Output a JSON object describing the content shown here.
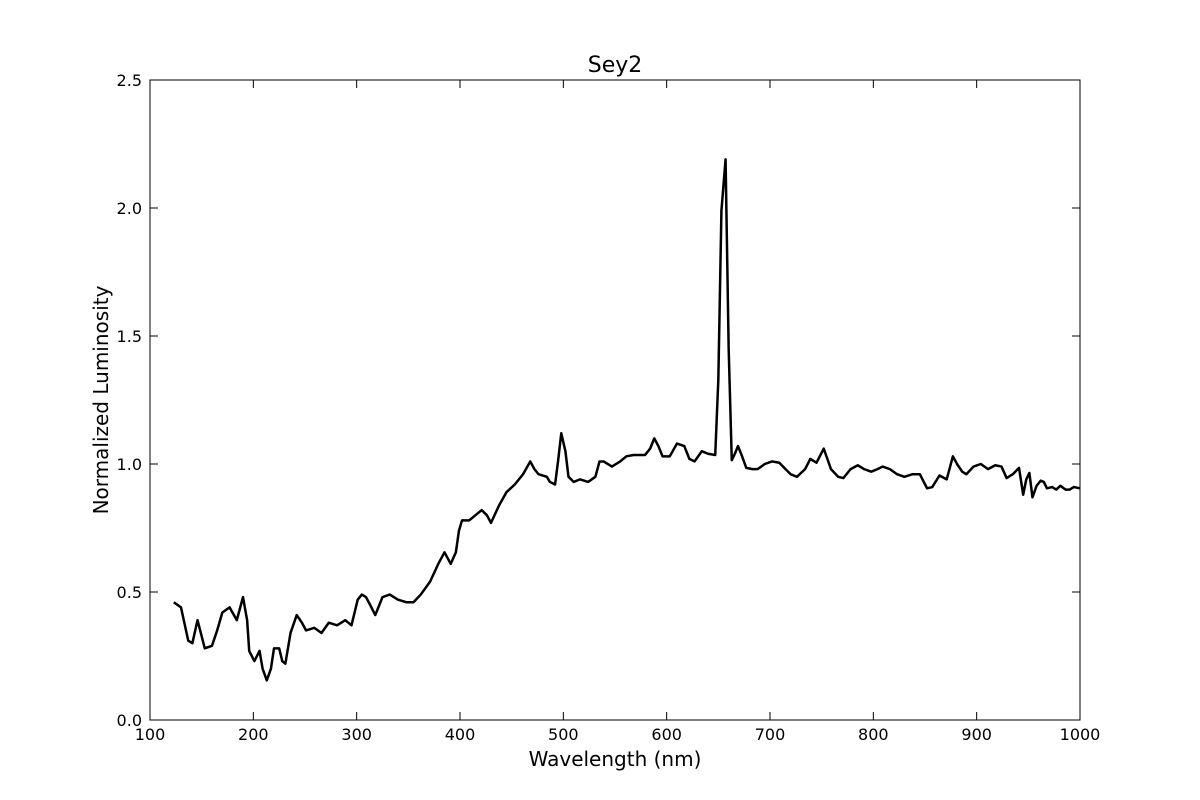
{
  "chart_data": {
    "type": "line",
    "title": "Sey2",
    "x_label": "Wavelength (nm)",
    "y_label": "Normalized Luminosity",
    "xlim": [
      100,
      1000
    ],
    "ylim": [
      0,
      2.5
    ],
    "xticks": [
      100,
      200,
      300,
      400,
      500,
      600,
      700,
      800,
      900,
      1000
    ],
    "yticks": [
      {
        "value": 0,
        "label": "0.0"
      },
      0.5,
      {
        "value": 1,
        "label": "1.0"
      },
      1.5,
      {
        "value": 2,
        "label": "2.0"
      },
      2.5
    ],
    "color": "#000000",
    "x": [
      123,
      130,
      137,
      141,
      146,
      153,
      160,
      165,
      170,
      177,
      184,
      190,
      194,
      196,
      201,
      206,
      209,
      213,
      217,
      220,
      225,
      228,
      231,
      236,
      242,
      247,
      251,
      259,
      266,
      273,
      281,
      289,
      295,
      301,
      305,
      309,
      313,
      318,
      325,
      332,
      340,
      348,
      355,
      362,
      371,
      379,
      385,
      391,
      396,
      399,
      402,
      409,
      415,
      421,
      426,
      430,
      438,
      445,
      453,
      461,
      468,
      472,
      476,
      484,
      487,
      492,
      495,
      498,
      502,
      505,
      510,
      516,
      524,
      531,
      535,
      539,
      547,
      555,
      561,
      568,
      579,
      584,
      588,
      592,
      596,
      603,
      610,
      617,
      622,
      627,
      634,
      640,
      647,
      650,
      653,
      657,
      660,
      663,
      666,
      669,
      673,
      677,
      683,
      688,
      695,
      702,
      709,
      715,
      720,
      726,
      734,
      739,
      745,
      752,
      759,
      766,
      771,
      778,
      785,
      791,
      798,
      804,
      809,
      816,
      823,
      830,
      838,
      845,
      852,
      857,
      864,
      871,
      877,
      881,
      886,
      890,
      897,
      904,
      911,
      918,
      924,
      929,
      935,
      941,
      945,
      948,
      951,
      954,
      958,
      962,
      965,
      968,
      973,
      977,
      981,
      986,
      990,
      994,
      1000
    ],
    "y": [
      0.46,
      0.44,
      0.31,
      0.3,
      0.39,
      0.28,
      0.29,
      0.35,
      0.42,
      0.44,
      0.39,
      0.48,
      0.39,
      0.27,
      0.23,
      0.27,
      0.2,
      0.155,
      0.2,
      0.28,
      0.28,
      0.23,
      0.22,
      0.34,
      0.41,
      0.38,
      0.35,
      0.36,
      0.34,
      0.38,
      0.37,
      0.39,
      0.37,
      0.47,
      0.49,
      0.48,
      0.45,
      0.41,
      0.48,
      0.49,
      0.47,
      0.46,
      0.46,
      0.49,
      0.54,
      0.61,
      0.655,
      0.61,
      0.655,
      0.74,
      0.78,
      0.78,
      0.8,
      0.82,
      0.8,
      0.77,
      0.84,
      0.89,
      0.92,
      0.96,
      1.01,
      0.98,
      0.96,
      0.95,
      0.93,
      0.92,
      1.015,
      1.12,
      1.05,
      0.95,
      0.93,
      0.94,
      0.93,
      0.95,
      1.01,
      1.01,
      0.99,
      1.01,
      1.03,
      1.035,
      1.035,
      1.06,
      1.1,
      1.07,
      1.03,
      1.03,
      1.08,
      1.07,
      1.02,
      1.01,
      1.05,
      1.04,
      1.035,
      1.33,
      1.99,
      2.19,
      1.45,
      1.015,
      1.04,
      1.07,
      1.03,
      0.985,
      0.98,
      0.98,
      1.0,
      1.01,
      1.005,
      0.98,
      0.96,
      0.95,
      0.98,
      1.02,
      1.005,
      1.06,
      0.98,
      0.95,
      0.945,
      0.98,
      0.995,
      0.98,
      0.97,
      0.98,
      0.99,
      0.98,
      0.96,
      0.95,
      0.96,
      0.96,
      0.905,
      0.91,
      0.955,
      0.94,
      1.03,
      1.0,
      0.97,
      0.96,
      0.99,
      1.0,
      0.98,
      0.995,
      0.99,
      0.945,
      0.96,
      0.985,
      0.88,
      0.94,
      0.965,
      0.87,
      0.915,
      0.935,
      0.93,
      0.905,
      0.91,
      0.9,
      0.915,
      0.9,
      0.9,
      0.91,
      0.905
    ]
  }
}
